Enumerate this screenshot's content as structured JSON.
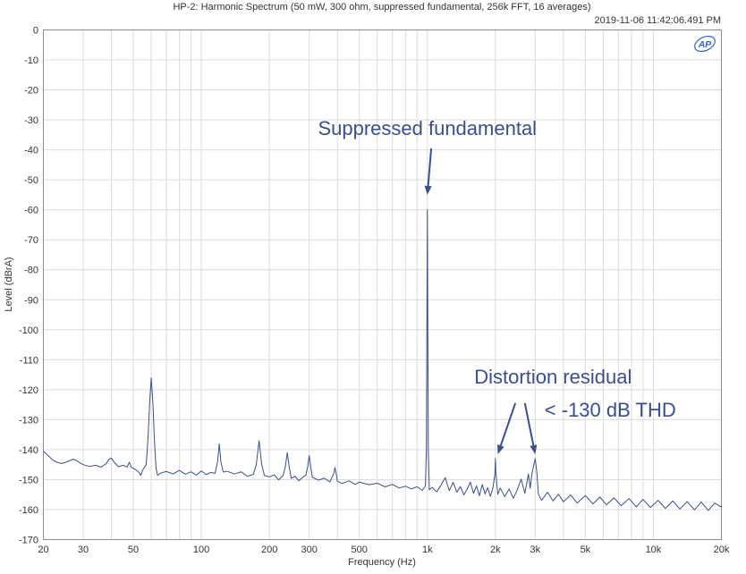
{
  "chart_data": {
    "type": "line",
    "title": "HP-2: Harmonic Spectrum (50 mW, 300 ohm, suppressed fundamental, 256k FFT, 16 averages)",
    "timestamp": "2019-11-06 11:42:06.491 PM",
    "logo": "AP",
    "xlabel": "Frequency (Hz)",
    "ylabel": "Level (dBrA)",
    "xscale": "log",
    "xlim": [
      20,
      20000
    ],
    "ylim": [
      -170,
      0
    ],
    "grid": true,
    "x_ticks": [
      {
        "value": 20,
        "label": "20"
      },
      {
        "value": 30,
        "label": "30"
      },
      {
        "value": 50,
        "label": "50"
      },
      {
        "value": 100,
        "label": "100"
      },
      {
        "value": 200,
        "label": "200"
      },
      {
        "value": 300,
        "label": "300"
      },
      {
        "value": 500,
        "label": "500"
      },
      {
        "value": 1000,
        "label": "1k"
      },
      {
        "value": 2000,
        "label": "2k"
      },
      {
        "value": 3000,
        "label": "3k"
      },
      {
        "value": 5000,
        "label": "5k"
      },
      {
        "value": 10000,
        "label": "10k"
      },
      {
        "value": 20000,
        "label": "20k"
      }
    ],
    "y_ticks": [
      {
        "value": 0,
        "label": "0"
      },
      {
        "value": -10,
        "label": "-10"
      },
      {
        "value": -20,
        "label": "-20"
      },
      {
        "value": -30,
        "label": "-30"
      },
      {
        "value": -40,
        "label": "-40"
      },
      {
        "value": -50,
        "label": "-50"
      },
      {
        "value": -60,
        "label": "-60"
      },
      {
        "value": -70,
        "label": "-70"
      },
      {
        "value": -80,
        "label": "-80"
      },
      {
        "value": -90,
        "label": "-90"
      },
      {
        "value": -100,
        "label": "-100"
      },
      {
        "value": -110,
        "label": "-110"
      },
      {
        "value": -120,
        "label": "-120"
      },
      {
        "value": -130,
        "label": "-130"
      },
      {
        "value": -140,
        "label": "-140"
      },
      {
        "value": -150,
        "label": "-150"
      },
      {
        "value": -160,
        "label": "-160"
      },
      {
        "value": -170,
        "label": "-170"
      }
    ],
    "series": [
      {
        "color": "#3a4f8c",
        "points": [
          [
            20,
            -140.5
          ],
          [
            21,
            -142
          ],
          [
            22,
            -143.5
          ],
          [
            23,
            -144.2
          ],
          [
            24,
            -144.6
          ],
          [
            25,
            -144.3
          ],
          [
            26,
            -143.8
          ],
          [
            27,
            -143.2
          ],
          [
            28,
            -143.6
          ],
          [
            29,
            -144.4
          ],
          [
            30,
            -145
          ],
          [
            32,
            -145.6
          ],
          [
            34,
            -145.2
          ],
          [
            36,
            -145.8
          ],
          [
            38,
            -144.6
          ],
          [
            39,
            -143.2
          ],
          [
            40,
            -142.8
          ],
          [
            41,
            -144.1
          ],
          [
            43,
            -145.7
          ],
          [
            45,
            -145.2
          ],
          [
            47,
            -145.8
          ],
          [
            48,
            -144.2
          ],
          [
            49,
            -145.9
          ],
          [
            51,
            -146.6
          ],
          [
            53,
            -147.6
          ],
          [
            54,
            -148.6
          ],
          [
            55,
            -146.8
          ],
          [
            57,
            -145
          ],
          [
            58,
            -137
          ],
          [
            59,
            -125
          ],
          [
            60,
            -116
          ],
          [
            61,
            -124
          ],
          [
            62,
            -137
          ],
          [
            63,
            -146
          ],
          [
            64,
            -148.6
          ],
          [
            66,
            -147.8
          ],
          [
            70,
            -147.3
          ],
          [
            75,
            -148.1
          ],
          [
            80,
            -146.9
          ],
          [
            85,
            -148.2
          ],
          [
            90,
            -147.4
          ],
          [
            95,
            -148.5
          ],
          [
            100,
            -147.1
          ],
          [
            105,
            -148.3
          ],
          [
            110,
            -147.6
          ],
          [
            115,
            -147.9
          ],
          [
            118,
            -144
          ],
          [
            120,
            -138
          ],
          [
            122,
            -144
          ],
          [
            125,
            -147.5
          ],
          [
            130,
            -147.2
          ],
          [
            140,
            -148.1
          ],
          [
            150,
            -147.4
          ],
          [
            160,
            -148.9
          ],
          [
            170,
            -148.2
          ],
          [
            175,
            -145
          ],
          [
            180,
            -137
          ],
          [
            185,
            -145
          ],
          [
            190,
            -148.6
          ],
          [
            200,
            -149.1
          ],
          [
            210,
            -148.4
          ],
          [
            220,
            -150.1
          ],
          [
            230,
            -148.6
          ],
          [
            235,
            -146
          ],
          [
            240,
            -141
          ],
          [
            245,
            -146
          ],
          [
            250,
            -149.6
          ],
          [
            260,
            -148.9
          ],
          [
            270,
            -150.4
          ],
          [
            280,
            -149.3
          ],
          [
            290,
            -148.5
          ],
          [
            295,
            -146
          ],
          [
            300,
            -142
          ],
          [
            305,
            -146
          ],
          [
            310,
            -149.2
          ],
          [
            330,
            -150.2
          ],
          [
            350,
            -149.5
          ],
          [
            370,
            -150.8
          ],
          [
            385,
            -148
          ],
          [
            390,
            -146
          ],
          [
            395,
            -148
          ],
          [
            400,
            -150.6
          ],
          [
            420,
            -151.3
          ],
          [
            450,
            -150.4
          ],
          [
            480,
            -151.6
          ],
          [
            500,
            -150.8
          ],
          [
            550,
            -151.7
          ],
          [
            600,
            -151.2
          ],
          [
            650,
            -152.4
          ],
          [
            700,
            -151.6
          ],
          [
            750,
            -152.8
          ],
          [
            800,
            -152.2
          ],
          [
            850,
            -153.1
          ],
          [
            900,
            -152.4
          ],
          [
            950,
            -153.6
          ],
          [
            980,
            -152.1
          ],
          [
            990,
            -140
          ],
          [
            1000,
            -60
          ],
          [
            1010,
            -140
          ],
          [
            1020,
            -153.4
          ],
          [
            1050,
            -152.6
          ],
          [
            1100,
            -154.1
          ],
          [
            1150,
            -151.8
          ],
          [
            1200,
            -149.3
          ],
          [
            1250,
            -153.7
          ],
          [
            1300,
            -150.9
          ],
          [
            1350,
            -154.2
          ],
          [
            1400,
            -152.3
          ],
          [
            1450,
            -155.1
          ],
          [
            1500,
            -153.2
          ],
          [
            1550,
            -150.8
          ],
          [
            1600,
            -154.6
          ],
          [
            1650,
            -152.1
          ],
          [
            1700,
            -155.4
          ],
          [
            1750,
            -151.6
          ],
          [
            1800,
            -154.8
          ],
          [
            1850,
            -152.7
          ],
          [
            1900,
            -155.6
          ],
          [
            1950,
            -152.8
          ],
          [
            1990,
            -148
          ],
          [
            2000,
            -143
          ],
          [
            2010,
            -148
          ],
          [
            2050,
            -154.9
          ],
          [
            2100,
            -152.8
          ],
          [
            2200,
            -155.7
          ],
          [
            2300,
            -153.1
          ],
          [
            2400,
            -156.2
          ],
          [
            2500,
            -153.4
          ],
          [
            2600,
            -149.8
          ],
          [
            2700,
            -154.6
          ],
          [
            2800,
            -148.1
          ],
          [
            2850,
            -152.9
          ],
          [
            2900,
            -148.2
          ],
          [
            2950,
            -145.5
          ],
          [
            3000,
            -143
          ],
          [
            3050,
            -147.5
          ],
          [
            3100,
            -154.8
          ],
          [
            3200,
            -156.9
          ],
          [
            3400,
            -154.2
          ],
          [
            3600,
            -157.1
          ],
          [
            3800,
            -154.9
          ],
          [
            4000,
            -157.4
          ],
          [
            4300,
            -155.1
          ],
          [
            4600,
            -157.8
          ],
          [
            5000,
            -155.3
          ],
          [
            5400,
            -158.1
          ],
          [
            5800,
            -155.8
          ],
          [
            6200,
            -158.4
          ],
          [
            6700,
            -156.1
          ],
          [
            7200,
            -158.7
          ],
          [
            7800,
            -156.3
          ],
          [
            8400,
            -159.1
          ],
          [
            9000,
            -156.6
          ],
          [
            9700,
            -159.3
          ],
          [
            10500,
            -156.9
          ],
          [
            11300,
            -159.6
          ],
          [
            12200,
            -157.1
          ],
          [
            13100,
            -159.8
          ],
          [
            14100,
            -157.3
          ],
          [
            15200,
            -160.1
          ],
          [
            16300,
            -157.5
          ],
          [
            17500,
            -160.3
          ],
          [
            18700,
            -157.8
          ],
          [
            20000,
            -159.2
          ]
        ]
      }
    ],
    "annotations": [
      {
        "text": "Suppressed fundamental",
        "x": 1000,
        "y": -35,
        "anchor": "middle"
      },
      {
        "text": "Distortion residual",
        "x": 3600,
        "y": -118,
        "anchor": "middle"
      },
      {
        "text": "< -130 dB THD",
        "x": 3300,
        "y": -129,
        "anchor": "start"
      }
    ],
    "arrows": [
      {
        "from": [
          1040,
          -39.5
        ],
        "to": [
          1000,
          -55
        ]
      },
      {
        "from": [
          2450,
          -124.5
        ],
        "to": [
          2050,
          -141.5
        ]
      },
      {
        "from": [
          2700,
          -124.5
        ],
        "to": [
          3000,
          -141.5
        ]
      }
    ]
  }
}
